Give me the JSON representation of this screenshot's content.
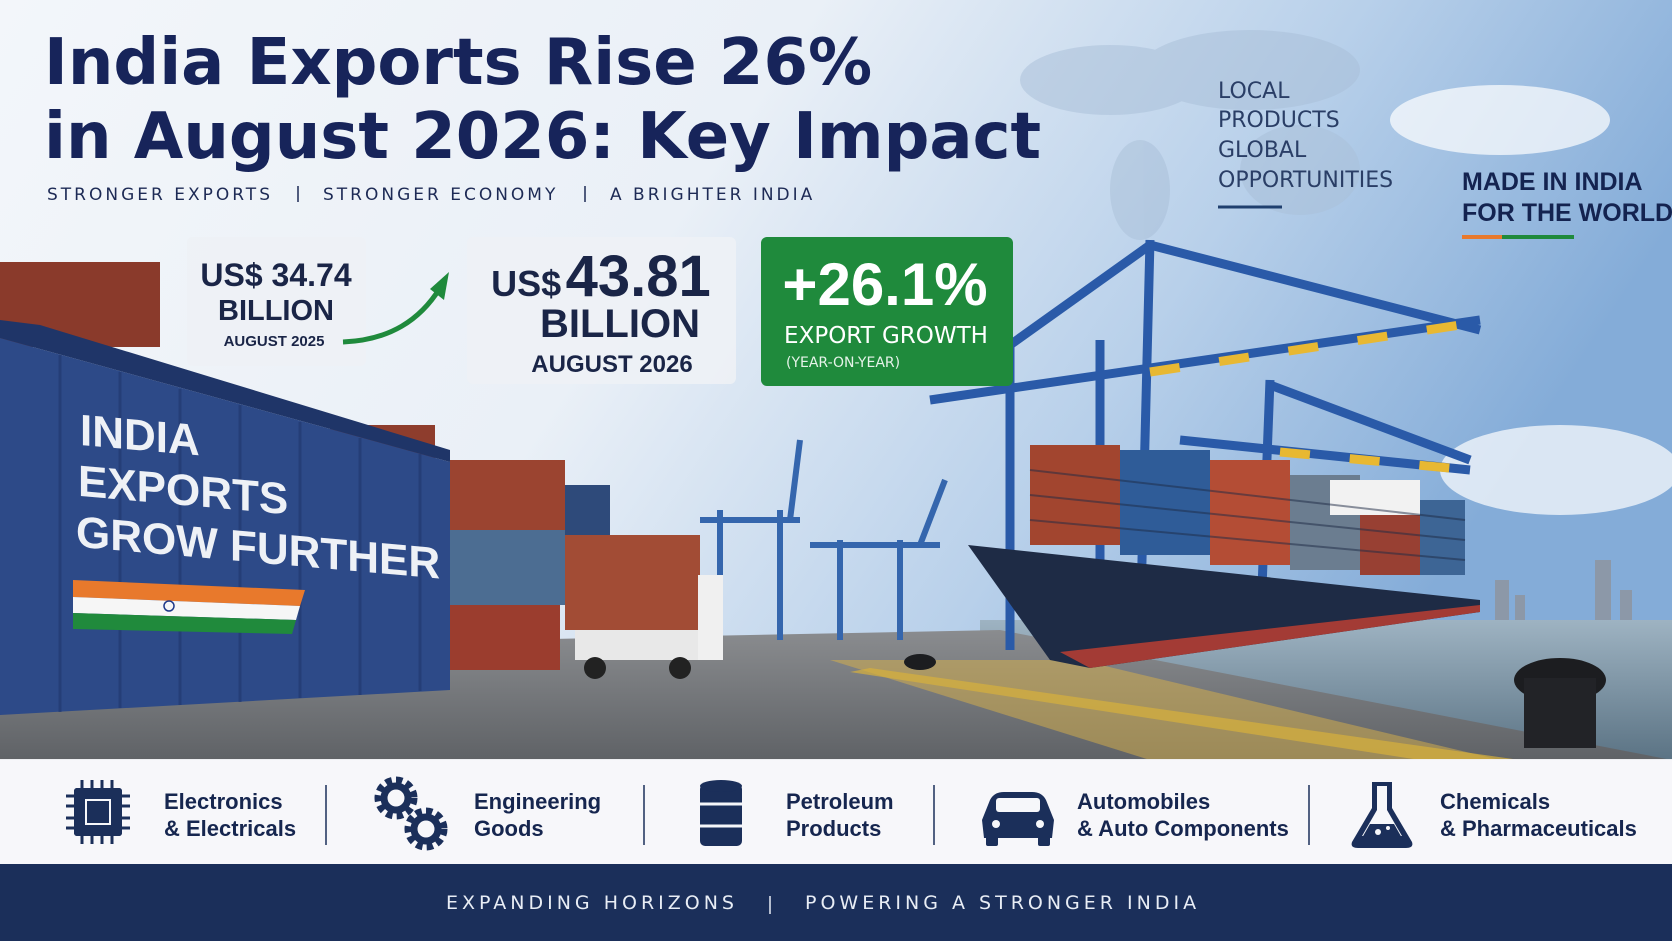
{
  "header": {
    "title_lines": [
      "India Exports Rise 26%",
      "in August 2026: Key Impact"
    ],
    "tagline": [
      "STRONGER EXPORTS",
      "STRONGER ECONOMY",
      "A BRIGHTER INDIA"
    ]
  },
  "side_text": [
    "LOCAL",
    "PRODUCTS",
    "GLOBAL",
    "OPPORTUNITIES"
  ],
  "badge": [
    "MADE IN INDIA",
    "FOR THE WORLD"
  ],
  "stats": {
    "previous": {
      "currency": "US$",
      "amount": 34.74,
      "unit": "BILLION",
      "period": "AUGUST 2025"
    },
    "current": {
      "currency": "US$",
      "amount": 43.81,
      "unit": "BILLION",
      "period": "AUGUST 2026"
    },
    "growth": {
      "value": "+26.1%",
      "label": "EXPORT GROWTH",
      "note": "(YEAR-ON-YEAR)"
    }
  },
  "container_text": [
    "INDIA",
    "EXPORTS",
    "GROW FURTHER"
  ],
  "sectors": [
    {
      "line1": "Electronics",
      "line2": "& Electricals"
    },
    {
      "line1": "Engineering",
      "line2": "Goods"
    },
    {
      "line1": "Petroleum",
      "line2": "Products"
    },
    {
      "line1": "Automobiles",
      "line2": "& Auto Components"
    },
    {
      "line1": "Chemicals",
      "line2": "& Pharmaceuticals"
    }
  ],
  "footer": [
    "EXPANDING HORIZONS",
    "POWERING A STRONGER INDIA"
  ]
}
